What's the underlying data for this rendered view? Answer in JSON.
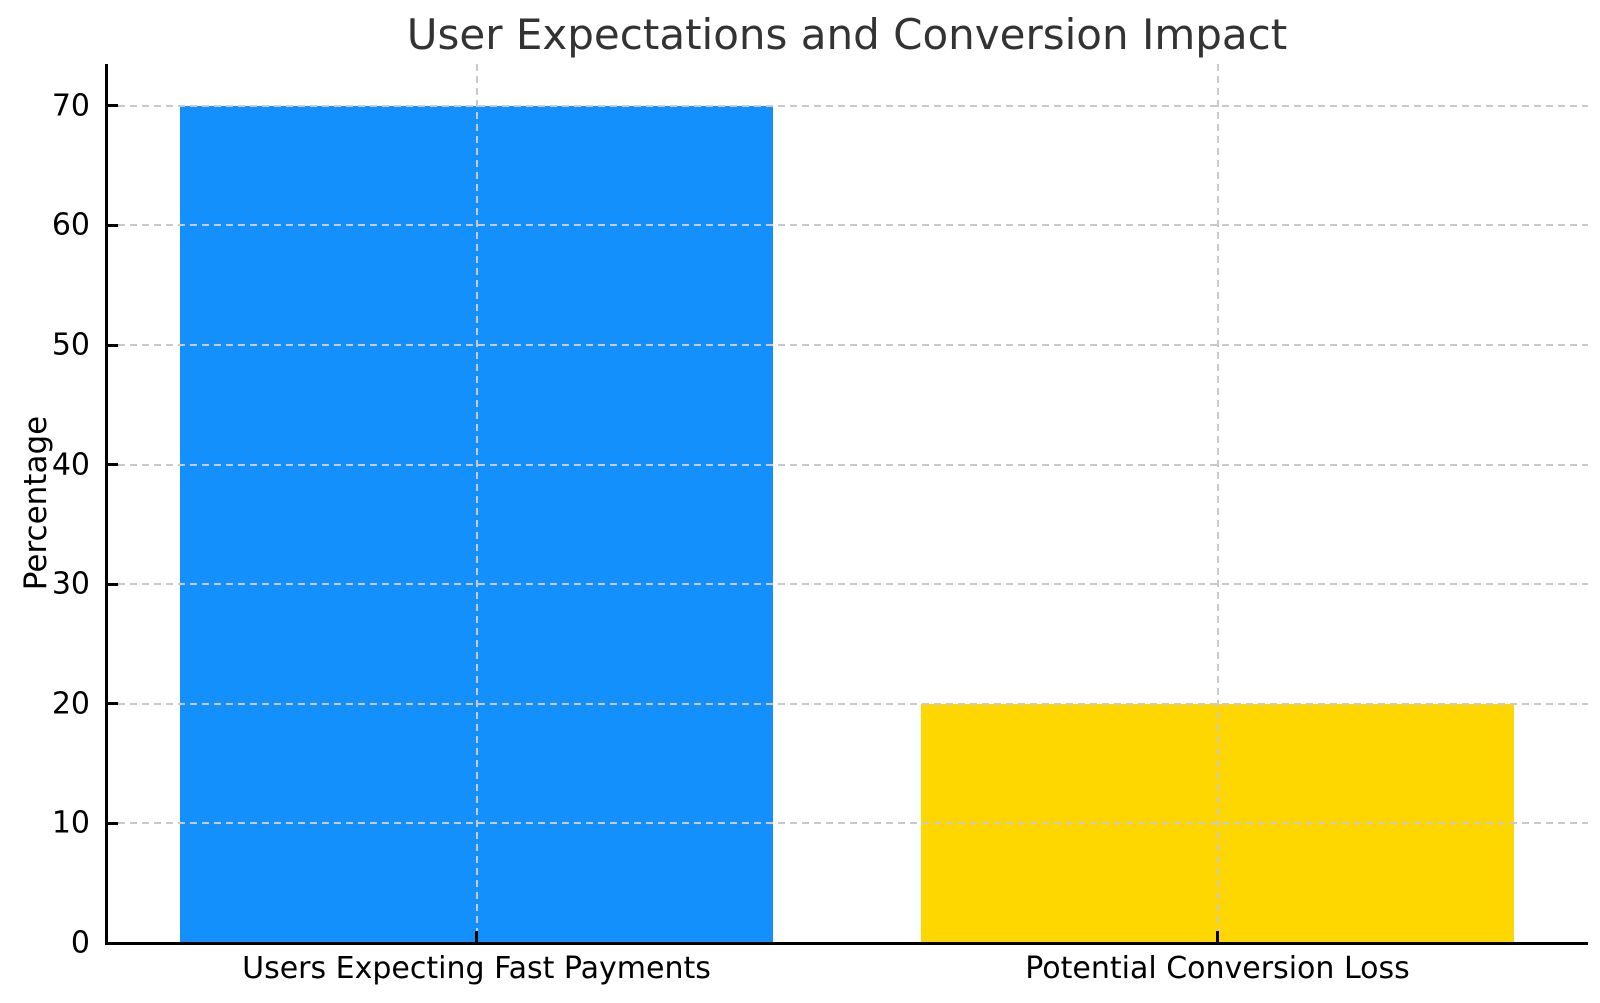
{
  "chart_data": {
    "type": "bar",
    "title": "User Expectations and Conversion Impact",
    "xlabel": "",
    "ylabel": "Percentage",
    "categories": [
      "Users Expecting Fast Payments",
      "Potential Conversion Loss"
    ],
    "values": [
      70,
      20
    ],
    "bar_colors": [
      "#1490fc",
      "#ffd700"
    ],
    "bar_width_fraction": 0.8,
    "yticks": [
      0,
      10,
      20,
      30,
      40,
      50,
      60,
      70
    ],
    "ylim": [
      0,
      73.5
    ],
    "grid": {
      "horizontal": true,
      "vertical": true,
      "style": "dashed",
      "color": "#c9c9c9"
    },
    "legend": "none",
    "spines": [
      "left",
      "bottom"
    ],
    "tick_direction": "in",
    "axis_color": "#000000",
    "title_color": "#333333",
    "tick_label_color": "#000000",
    "background_color": "#ffffff"
  }
}
